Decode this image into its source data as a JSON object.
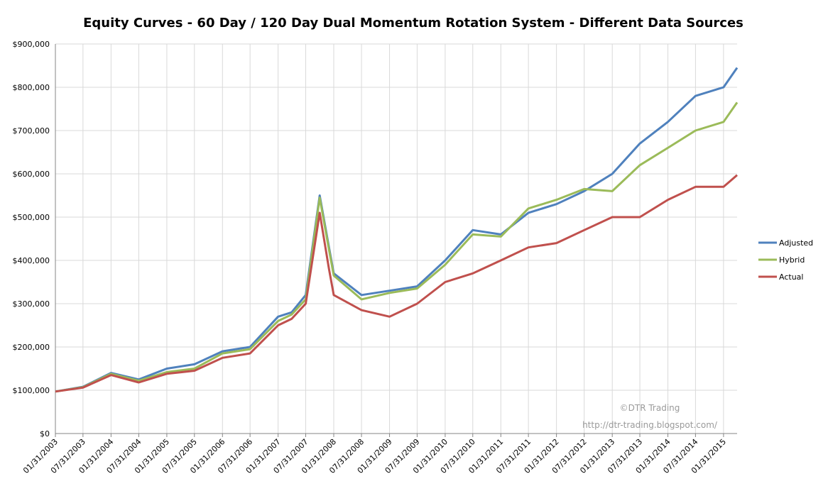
{
  "chart_data": {
    "type": "line",
    "title": "Equity Curves - 60 Day / 120 Day Dual Momentum Rotation System - Different Data Sources",
    "xlabel": "",
    "ylabel": "",
    "ylim": [
      0,
      900000
    ],
    "yticks": [
      0,
      100000,
      200000,
      300000,
      400000,
      500000,
      600000,
      700000,
      800000,
      900000
    ],
    "ytick_labels": [
      "$0",
      "$100,000",
      "$200,000",
      "$300,000",
      "$400,000",
      "$500,000",
      "$600,000",
      "$700,000",
      "$800,000",
      "$900,000"
    ],
    "xtick_labels": [
      "01/31/2003",
      "07/31/2003",
      "01/31/2004",
      "07/31/2004",
      "01/31/2005",
      "07/31/2005",
      "01/31/2006",
      "07/31/2006",
      "01/31/2007",
      "07/31/2007",
      "01/31/2008",
      "07/31/2008",
      "01/31/2009",
      "07/31/2009",
      "01/31/2010",
      "07/31/2010",
      "01/31/2011",
      "07/31/2011",
      "01/31/2012",
      "07/31/2012",
      "01/31/2013",
      "07/31/2013",
      "01/31/2014",
      "07/31/2014",
      "01/31/2015"
    ],
    "x": [
      "01/31/2003",
      "07/31/2003",
      "01/31/2004",
      "07/31/2004",
      "01/31/2005",
      "07/31/2005",
      "01/31/2006",
      "07/31/2006",
      "01/31/2007",
      "04/30/2007",
      "07/31/2007",
      "10/31/2007",
      "12/31/2007",
      "01/31/2008",
      "07/31/2008",
      "01/31/2009",
      "07/31/2009",
      "01/31/2010",
      "07/31/2010",
      "01/31/2011",
      "07/31/2011",
      "01/31/2012",
      "07/31/2012",
      "01/31/2013",
      "07/31/2013",
      "01/31/2014",
      "07/31/2014",
      "01/31/2015",
      "04/30/2015"
    ],
    "series": [
      {
        "name": "Adjusted",
        "color": "#4f81bd",
        "values": [
          97000,
          108000,
          140000,
          125000,
          150000,
          160000,
          190000,
          200000,
          270000,
          280000,
          320000,
          550000,
          430000,
          370000,
          320000,
          330000,
          340000,
          400000,
          470000,
          460000,
          510000,
          530000,
          560000,
          600000,
          670000,
          720000,
          780000,
          800000,
          845000
        ]
      },
      {
        "name": "Hybrid",
        "color": "#9bbb59",
        "values": [
          97000,
          107000,
          138000,
          122000,
          142000,
          150000,
          185000,
          195000,
          260000,
          275000,
          310000,
          545000,
          425000,
          365000,
          310000,
          325000,
          335000,
          390000,
          460000,
          455000,
          520000,
          540000,
          565000,
          560000,
          620000,
          660000,
          700000,
          720000,
          765000
        ]
      },
      {
        "name": "Actual",
        "color": "#c0504d",
        "values": [
          97000,
          106000,
          135000,
          118000,
          138000,
          145000,
          175000,
          185000,
          250000,
          265000,
          300000,
          510000,
          380000,
          320000,
          285000,
          270000,
          300000,
          350000,
          370000,
          400000,
          430000,
          440000,
          470000,
          500000,
          500000,
          540000,
          570000,
          570000,
          597000
        ]
      }
    ],
    "legend": {
      "position": "right"
    },
    "grid": true,
    "watermark": {
      "line1": "©DTR Trading",
      "line2": "http://dtr-trading.blogspot.com/"
    }
  }
}
